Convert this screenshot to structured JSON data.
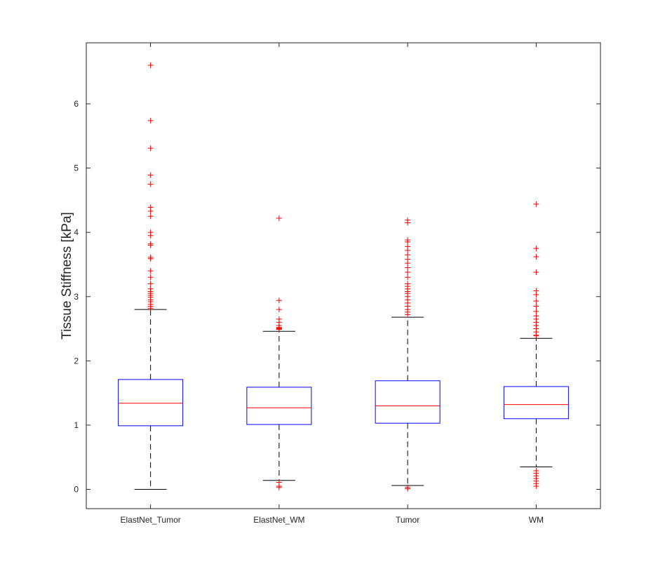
{
  "chart_data": {
    "type": "box",
    "title": "",
    "xlabel": "",
    "ylabel": "Tissue Stiffness [kPa]",
    "ylim": [
      -0.3,
      6.95
    ],
    "yticks": [
      0,
      1,
      2,
      3,
      4,
      5,
      6
    ],
    "grid": false,
    "categories": [
      "ElastNet_Tumor",
      "ElastNet_WM",
      "Tumor",
      "WM"
    ],
    "boxes": [
      {
        "q1": 0.99,
        "median": 1.34,
        "q3": 1.71,
        "whisker_low": 0.0,
        "whisker_high": 2.8,
        "outliers": [
          2.82,
          2.85,
          2.88,
          2.92,
          2.95,
          2.99,
          3.02,
          3.05,
          3.08,
          3.12,
          3.2,
          3.3,
          3.4,
          3.59,
          3.61,
          3.8,
          3.82,
          3.95,
          4.0,
          4.25,
          4.33,
          4.39,
          4.75,
          4.89,
          5.31,
          5.74,
          6.6
        ]
      },
      {
        "q1": 1.01,
        "median": 1.27,
        "q3": 1.59,
        "whisker_low": 0.14,
        "whisker_high": 2.46,
        "outliers": [
          0.03,
          0.05,
          0.11,
          2.49,
          2.5,
          2.51,
          2.52,
          2.55,
          2.6,
          2.65,
          2.8,
          2.94,
          4.22
        ]
      },
      {
        "q1": 1.03,
        "median": 1.3,
        "q3": 1.69,
        "whisker_low": 0.06,
        "whisker_high": 2.68,
        "outliers": [
          0.01,
          0.03,
          2.72,
          2.76,
          2.8,
          2.85,
          2.9,
          2.95,
          3.0,
          3.05,
          3.08,
          3.12,
          3.16,
          3.2,
          3.3,
          3.38,
          3.45,
          3.52,
          3.58,
          3.65,
          3.72,
          3.78,
          3.85,
          3.88,
          4.15,
          4.19
        ]
      },
      {
        "q1": 1.1,
        "median": 1.32,
        "q3": 1.6,
        "whisker_low": 0.35,
        "whisker_high": 2.35,
        "outliers": [
          0.05,
          0.09,
          0.13,
          0.17,
          0.21,
          0.25,
          0.29,
          2.39,
          2.4,
          2.45,
          2.5,
          2.55,
          2.6,
          2.65,
          2.7,
          2.77,
          2.85,
          2.93,
          3.03,
          3.09,
          3.38,
          3.62,
          3.75,
          4.44
        ]
      }
    ],
    "colors": {
      "box": "#0000ff",
      "median": "#ff0000",
      "whisker": "#000000",
      "outlier": "#ff0000",
      "axis": "#262626"
    }
  }
}
